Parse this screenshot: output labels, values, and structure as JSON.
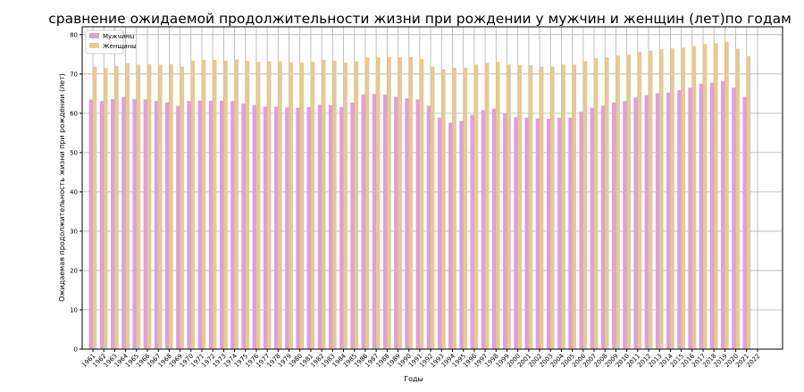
{
  "chart_data": {
    "type": "bar",
    "title": "сравнение ожидаемой продолжительности жизни при рождении у мужчин и женщин (лет)по годам",
    "xlabel": "Годы",
    "ylabel": "Ожидаемая продолжительность жизни при рождении (лет)",
    "ylim": [
      0,
      82
    ],
    "yticks": [
      0,
      10,
      20,
      30,
      40,
      50,
      60,
      70,
      80
    ],
    "grid": true,
    "legend_position": "top-left",
    "categories": [
      "1961",
      "1962",
      "1963",
      "1964",
      "1965",
      "1966",
      "1967",
      "1968",
      "1969",
      "1970",
      "1971",
      "1972",
      "1973",
      "1974",
      "1975",
      "1976",
      "1977",
      "1978",
      "1979",
      "1980",
      "1981",
      "1982",
      "1983",
      "1984",
      "1985",
      "1986",
      "1987",
      "1988",
      "1989",
      "1990",
      "1991",
      "1992",
      "1993",
      "1994",
      "1995",
      "1996",
      "1997",
      "1998",
      "1999",
      "2000",
      "2001",
      "2002",
      "2003",
      "2004",
      "2005",
      "2006",
      "2007",
      "2008",
      "2009",
      "2010",
      "2011",
      "2012",
      "2013",
      "2014",
      "2015",
      "2016",
      "2017",
      "2018",
      "2019",
      "2020",
      "2021",
      "2022"
    ],
    "series": [
      {
        "name": "Мужчины",
        "color": "#dda0dd",
        "values": [
          63.5,
          63.1,
          63.6,
          64.2,
          63.6,
          63.5,
          63.1,
          62.8,
          61.9,
          63.1,
          63.2,
          63.2,
          63.2,
          63.1,
          62.5,
          62.1,
          61.7,
          61.7,
          61.5,
          61.4,
          61.6,
          62.2,
          62.1,
          61.6,
          62.7,
          64.8,
          64.9,
          64.8,
          64.2,
          63.8,
          63.5,
          61.9,
          58.9,
          57.6,
          58.1,
          59.6,
          60.8,
          61.2,
          59.9,
          59.0,
          58.9,
          58.7,
          58.6,
          58.9,
          58.9,
          60.4,
          61.4,
          61.9,
          62.8,
          63.1,
          64.0,
          64.6,
          65.1,
          65.3,
          65.9,
          66.5,
          67.5,
          67.8,
          68.2,
          66.5,
          64.2,
          null
        ]
      },
      {
        "name": "Женщины",
        "color": "#e8c992",
        "values": [
          71.9,
          71.5,
          72.0,
          72.7,
          72.4,
          72.5,
          72.4,
          72.5,
          71.9,
          73.4,
          73.6,
          73.6,
          73.4,
          73.7,
          73.3,
          73.1,
          73.2,
          73.2,
          73.0,
          72.9,
          73.1,
          73.6,
          73.4,
          72.9,
          73.2,
          74.2,
          74.3,
          74.4,
          74.3,
          74.3,
          73.8,
          71.9,
          71.2,
          71.6,
          71.6,
          72.4,
          72.8,
          73.1,
          72.4,
          72.3,
          72.2,
          71.9,
          71.9,
          72.4,
          72.4,
          73.2,
          74.0,
          74.2,
          74.7,
          74.9,
          75.6,
          75.9,
          76.3,
          76.5,
          76.7,
          77.1,
          77.6,
          77.8,
          78.2,
          76.4,
          74.5,
          null
        ]
      }
    ]
  }
}
